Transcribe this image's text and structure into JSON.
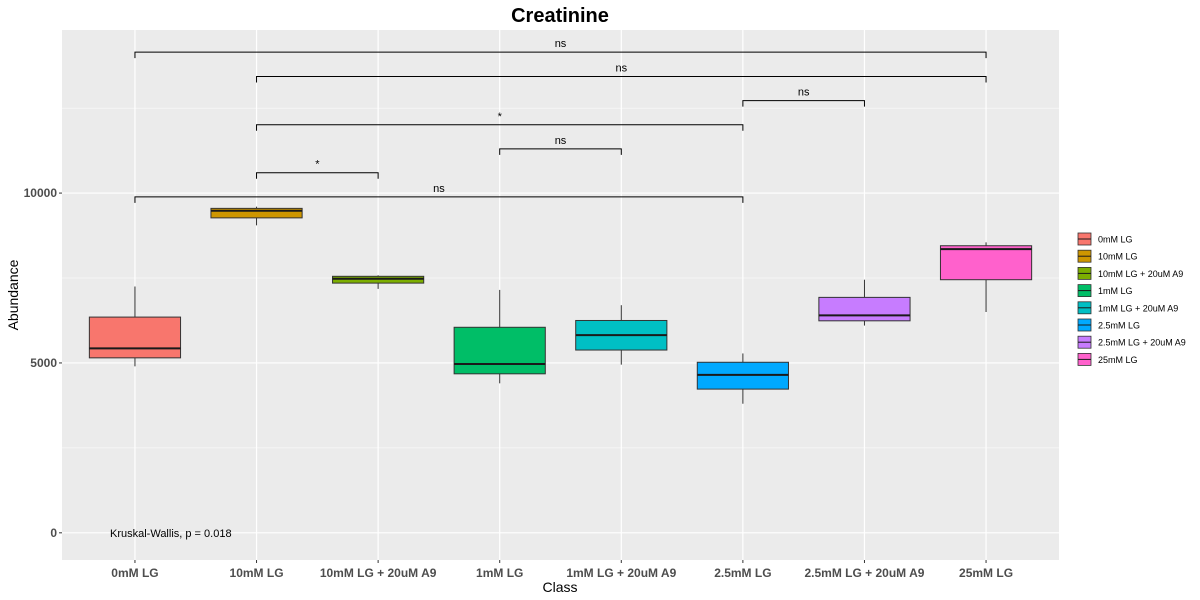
{
  "chart_data": {
    "type": "box",
    "title": "Creatinine",
    "xlabel": "Class",
    "ylabel": "Abundance",
    "ylim": [
      -800,
      14800
    ],
    "yticks": [
      0,
      5000,
      10000
    ],
    "ytick_labels": [
      "0",
      "5000",
      "10000"
    ],
    "categories": [
      "0mM LG",
      "10mM LG",
      "10mM LG + 20uM A9",
      "1mM LG",
      "1mM LG + 20uM A9",
      "2.5mM LG",
      "2.5mM LG + 20uM A9",
      "25mM LG"
    ],
    "colors": [
      "#F8766D",
      "#CD9600",
      "#7CAE00",
      "#00BE67",
      "#00BFC4",
      "#00A9FF",
      "#C77CFF",
      "#FF61CC"
    ],
    "boxes": [
      {
        "min": 4900,
        "q1": 5150,
        "median": 5430,
        "q3": 6350,
        "max": 7250
      },
      {
        "min": 9050,
        "q1": 9270,
        "median": 9480,
        "q3": 9550,
        "max": 9600
      },
      {
        "min": 7180,
        "q1": 7350,
        "median": 7480,
        "q3": 7550,
        "max": 7580
      },
      {
        "min": 4400,
        "q1": 4680,
        "median": 4970,
        "q3": 6050,
        "max": 7150
      },
      {
        "min": 4950,
        "q1": 5380,
        "median": 5820,
        "q3": 6250,
        "max": 6700
      },
      {
        "min": 3800,
        "q1": 4230,
        "median": 4650,
        "q3": 5020,
        "max": 5280
      },
      {
        "min": 6100,
        "q1": 6240,
        "median": 6400,
        "q3": 6930,
        "max": 7450
      },
      {
        "min": 6500,
        "q1": 7450,
        "median": 8350,
        "q3": 8450,
        "max": 8550
      }
    ],
    "comparisons": [
      {
        "from": 0,
        "to": 7,
        "y": 14150,
        "label": "ns"
      },
      {
        "from": 1,
        "to": 7,
        "y": 13430,
        "label": "ns"
      },
      {
        "from": 5,
        "to": 6,
        "y": 12720,
        "label": "ns"
      },
      {
        "from": 1,
        "to": 5,
        "y": 12010,
        "label": "*"
      },
      {
        "from": 3,
        "to": 4,
        "y": 11300,
        "label": "ns"
      },
      {
        "from": 1,
        "to": 2,
        "y": 10600,
        "label": "*"
      },
      {
        "from": 0,
        "to": 5,
        "y": 9890,
        "label": "ns"
      }
    ],
    "annotation": "Kruskal-Wallis, p = 0.018",
    "legend_position": "right",
    "grid": true,
    "background": "#EBEBEB"
  }
}
